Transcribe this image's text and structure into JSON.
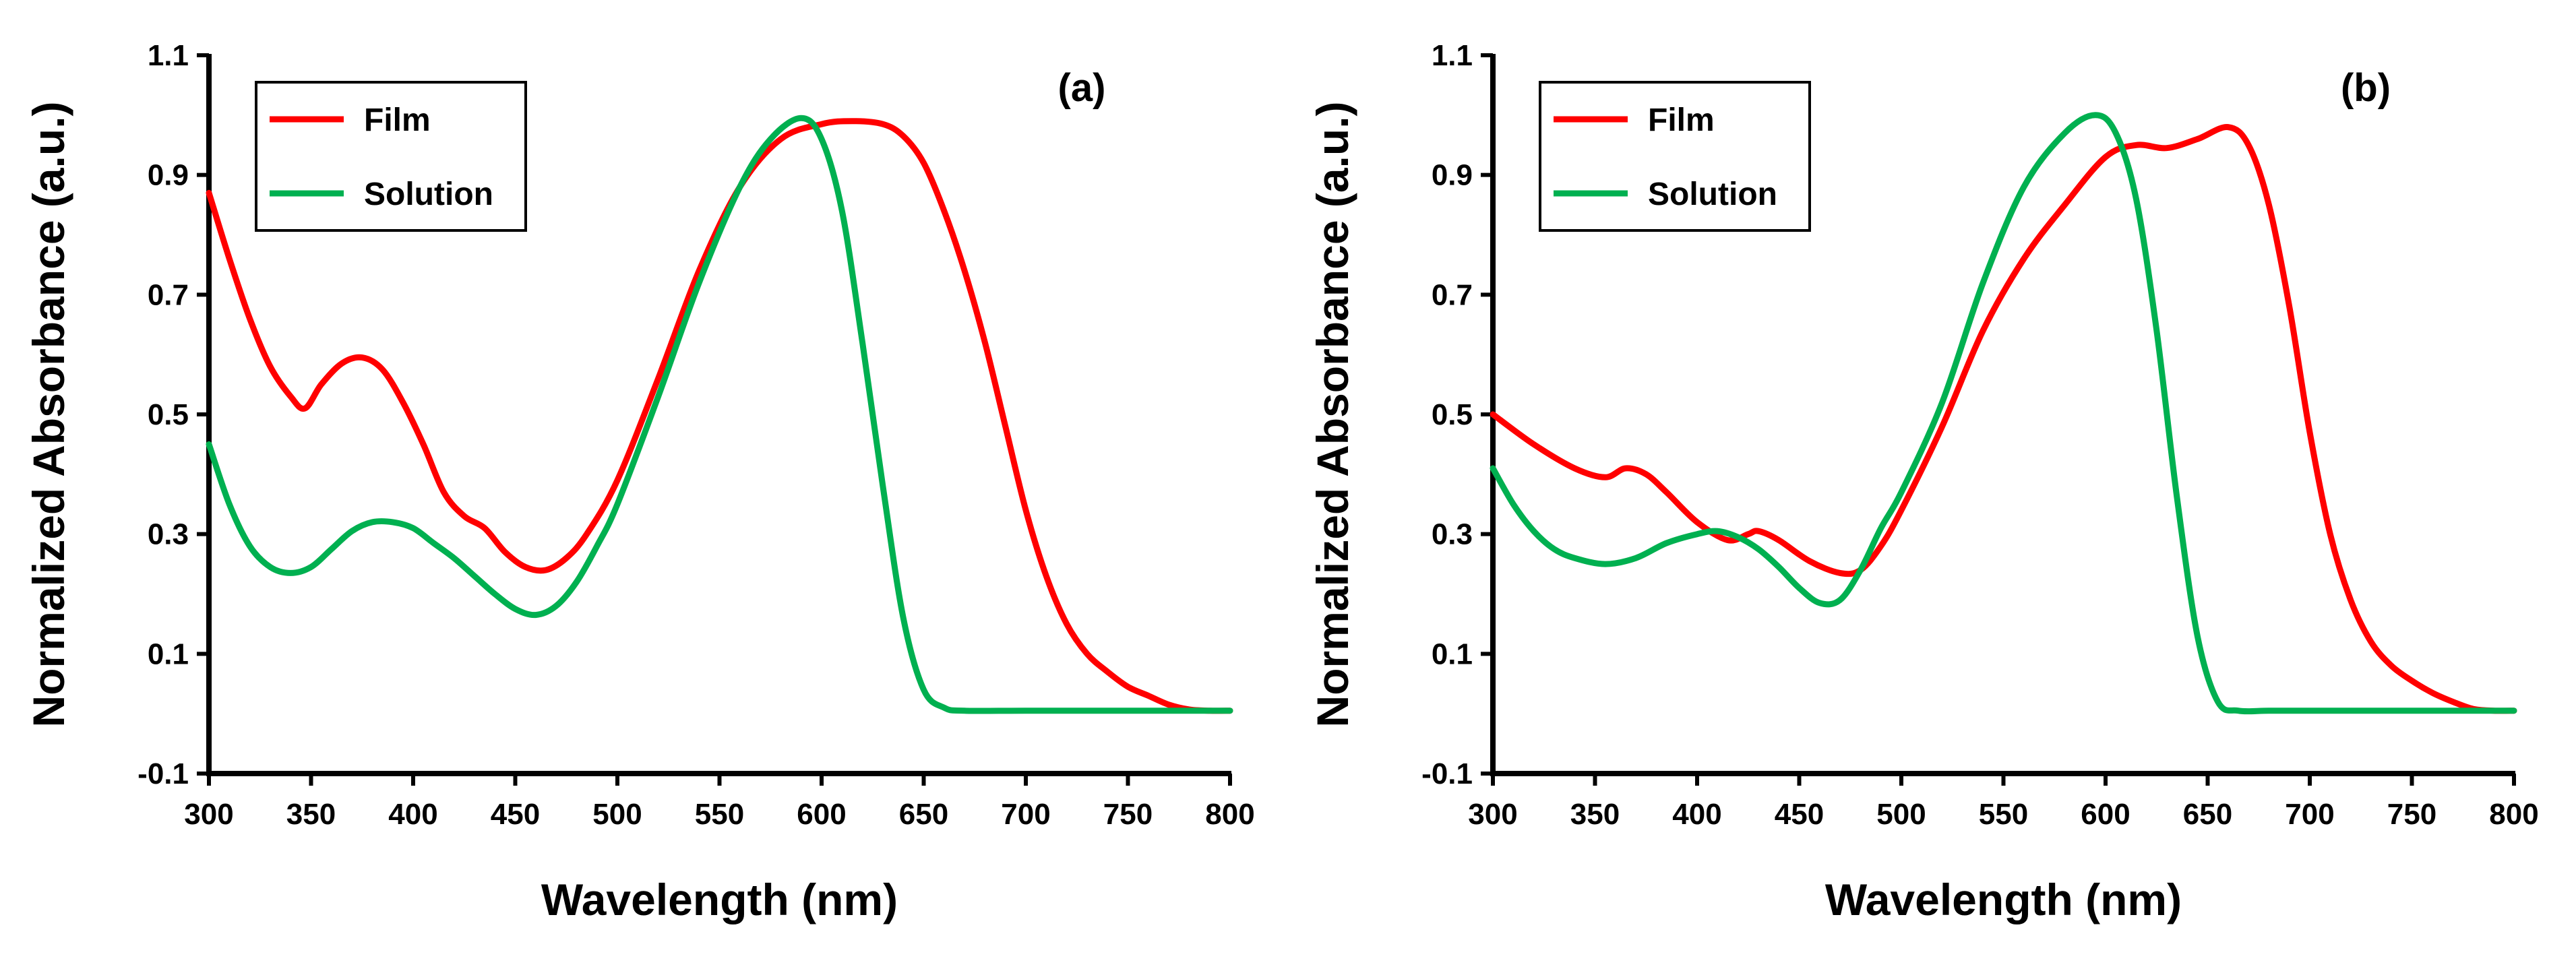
{
  "chart_data": [
    {
      "type": "line",
      "panel_label": "(a)",
      "xlabel": "Wavelength (nm)",
      "ylabel": "Normalized Absorbance (a.u.)",
      "xlim": [
        300,
        800
      ],
      "ylim": [
        -0.1,
        1.1
      ],
      "xticks": [
        "300",
        "350",
        "400",
        "450",
        "500",
        "550",
        "600",
        "650",
        "700",
        "750",
        "800"
      ],
      "yticks": [
        "-0.1",
        "0.1",
        "0.3",
        "0.5",
        "0.7",
        "0.9",
        "1.1"
      ],
      "legend_position": "top-left",
      "series": [
        {
          "name": "Film",
          "color": "#ff0000",
          "x": [
            300,
            310,
            320,
            330,
            340,
            347,
            355,
            365,
            375,
            385,
            395,
            405,
            415,
            425,
            435,
            445,
            455,
            465,
            475,
            485,
            500,
            520,
            540,
            560,
            580,
            600,
            615,
            630,
            640,
            650,
            660,
            670,
            680,
            690,
            700,
            710,
            720,
            730,
            740,
            750,
            760,
            770,
            780,
            790,
            800
          ],
          "y": [
            0.87,
            0.76,
            0.66,
            0.58,
            0.53,
            0.51,
            0.55,
            0.585,
            0.595,
            0.575,
            0.52,
            0.45,
            0.37,
            0.33,
            0.31,
            0.27,
            0.245,
            0.24,
            0.26,
            0.3,
            0.39,
            0.56,
            0.74,
            0.88,
            0.96,
            0.985,
            0.99,
            0.985,
            0.965,
            0.92,
            0.84,
            0.74,
            0.62,
            0.48,
            0.34,
            0.23,
            0.15,
            0.1,
            0.07,
            0.045,
            0.03,
            0.015,
            0.007,
            0.005,
            0.005
          ]
        },
        {
          "name": "Solution",
          "color": "#00b050",
          "x": [
            300,
            310,
            320,
            330,
            340,
            350,
            360,
            370,
            380,
            390,
            400,
            410,
            420,
            430,
            440,
            450,
            460,
            470,
            480,
            490,
            500,
            520,
            540,
            560,
            575,
            590,
            600,
            610,
            620,
            630,
            640,
            650,
            660,
            670,
            700,
            750,
            800
          ],
          "y": [
            0.45,
            0.35,
            0.28,
            0.245,
            0.235,
            0.245,
            0.275,
            0.305,
            0.32,
            0.32,
            0.31,
            0.285,
            0.26,
            0.23,
            0.2,
            0.175,
            0.165,
            0.18,
            0.22,
            0.28,
            0.35,
            0.53,
            0.72,
            0.88,
            0.96,
            0.995,
            0.96,
            0.84,
            0.62,
            0.38,
            0.16,
            0.04,
            0.01,
            0.005,
            0.005,
            0.005,
            0.005
          ]
        }
      ]
    },
    {
      "type": "line",
      "panel_label": "(b)",
      "xlabel": "Wavelength (nm)",
      "ylabel": "Normalized Absorbance (a.u.)",
      "xlim": [
        300,
        800
      ],
      "ylim": [
        -0.1,
        1.1
      ],
      "xticks": [
        "300",
        "350",
        "400",
        "450",
        "500",
        "550",
        "600",
        "650",
        "700",
        "750",
        "800"
      ],
      "yticks": [
        "-0.1",
        "0.1",
        "0.3",
        "0.5",
        "0.7",
        "0.9",
        "1.1"
      ],
      "legend_position": "top-left",
      "series": [
        {
          "name": "Film",
          "color": "#ff0000",
          "x": [
            300,
            320,
            340,
            355,
            365,
            375,
            385,
            400,
            415,
            425,
            430,
            440,
            455,
            470,
            480,
            490,
            500,
            520,
            540,
            560,
            580,
            600,
            615,
            630,
            645,
            660,
            670,
            680,
            690,
            700,
            710,
            720,
            730,
            740,
            750,
            760,
            770,
            780,
            790,
            800
          ],
          "y": [
            0.5,
            0.45,
            0.41,
            0.395,
            0.41,
            0.4,
            0.37,
            0.32,
            0.29,
            0.3,
            0.305,
            0.29,
            0.255,
            0.235,
            0.24,
            0.28,
            0.34,
            0.48,
            0.64,
            0.76,
            0.85,
            0.93,
            0.95,
            0.945,
            0.96,
            0.98,
            0.95,
            0.85,
            0.68,
            0.47,
            0.3,
            0.19,
            0.12,
            0.08,
            0.055,
            0.035,
            0.02,
            0.008,
            0.005,
            0.005
          ]
        },
        {
          "name": "Solution",
          "color": "#00b050",
          "x": [
            300,
            310,
            320,
            330,
            340,
            355,
            370,
            385,
            400,
            410,
            420,
            430,
            440,
            450,
            460,
            470,
            480,
            490,
            500,
            520,
            540,
            560,
            580,
            595,
            605,
            615,
            625,
            635,
            645,
            655,
            665,
            680,
            700,
            750,
            800
          ],
          "y": [
            0.41,
            0.35,
            0.305,
            0.275,
            0.26,
            0.25,
            0.26,
            0.285,
            0.3,
            0.305,
            0.295,
            0.275,
            0.245,
            0.21,
            0.185,
            0.19,
            0.24,
            0.31,
            0.37,
            0.52,
            0.72,
            0.88,
            0.97,
            1.0,
            0.97,
            0.86,
            0.64,
            0.36,
            0.13,
            0.02,
            0.005,
            0.005,
            0.005,
            0.005,
            0.005
          ]
        }
      ]
    }
  ]
}
